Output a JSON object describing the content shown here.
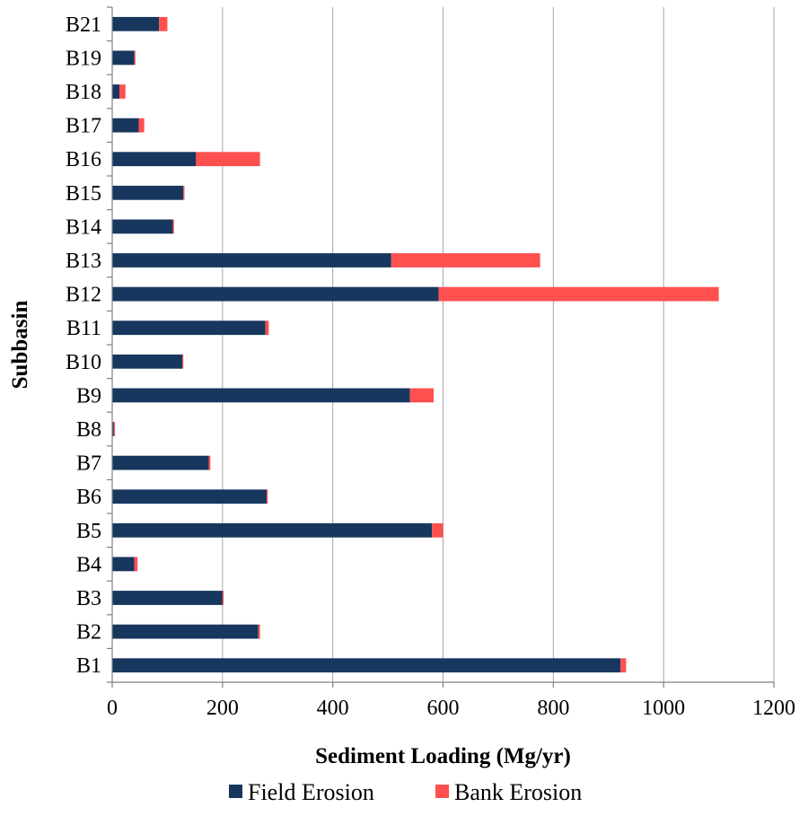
{
  "chart_data": {
    "type": "bar",
    "orientation": "horizontal",
    "stacked": true,
    "categories": [
      "B1",
      "B2",
      "B3",
      "B4",
      "B5",
      "B6",
      "B7",
      "B8",
      "B9",
      "B10",
      "B11",
      "B12",
      "B13",
      "B14",
      "B15",
      "B16",
      "B17",
      "B18",
      "B19",
      "B21"
    ],
    "series": [
      {
        "name": "Field Erosion",
        "color": "#17375E",
        "values": [
          922,
          265,
          200,
          40,
          580,
          280,
          175,
          3,
          540,
          127,
          278,
          592,
          506,
          110,
          129,
          152,
          48,
          13,
          40,
          85
        ]
      },
      {
        "name": "Bank Erosion",
        "color": "#FF5050",
        "values": [
          10,
          3,
          2,
          6,
          20,
          2,
          3,
          2,
          43,
          2,
          6,
          508,
          270,
          2,
          2,
          116,
          10,
          11,
          2,
          15
        ]
      }
    ],
    "title": "",
    "xlabel": "Sediment Loading (Mg/yr)",
    "ylabel": "Subbasin",
    "xlim": [
      0,
      1200
    ],
    "xticks": [
      0,
      200,
      400,
      600,
      800,
      1000,
      1200
    ],
    "grid": "vertical",
    "legend_position": "bottom"
  }
}
